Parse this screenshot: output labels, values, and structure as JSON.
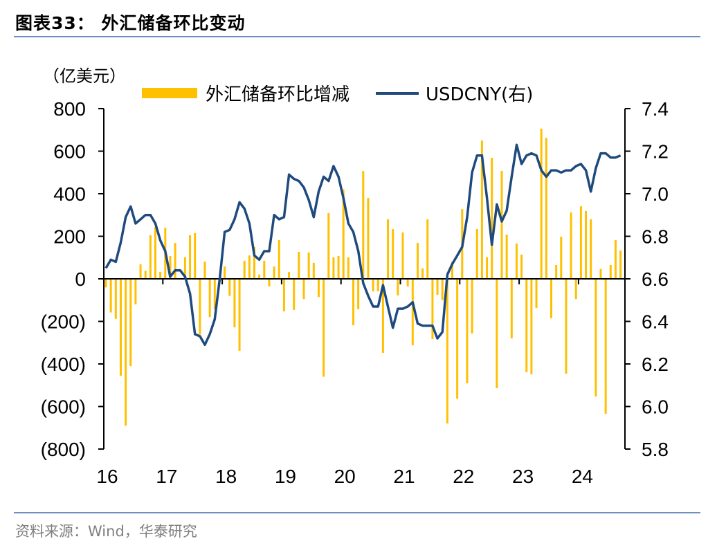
{
  "header": {
    "title": "图表33：  外汇储备环比变动"
  },
  "footer": {
    "source": "资料来源：Wind，华泰研究"
  },
  "chart_data": {
    "type": "bar+line",
    "title": "外汇储备环比变动",
    "ylabel": "（亿美元）",
    "y2label": "USDCNY(右)",
    "ylim": [
      -800,
      800
    ],
    "y2lim": [
      5.8,
      7.4
    ],
    "yticks": [
      "800",
      "600",
      "400",
      "200",
      "0",
      "(200)",
      "(400)",
      "(600)",
      "(800)"
    ],
    "y2ticks": [
      "7.4",
      "7.2",
      "7.0",
      "6.8",
      "6.6",
      "6.4",
      "6.2",
      "6.0",
      "5.8"
    ],
    "xticks": [
      "16",
      "17",
      "18",
      "19",
      "20",
      "21",
      "22",
      "23",
      "24"
    ],
    "x_start": "2016-01",
    "frequency": "monthly",
    "legend": {
      "placement": "top",
      "bar_label": "外汇储备环比增减",
      "line_label": "USDCNY(右)"
    },
    "colors": {
      "bar": "#FFC000",
      "line": "#1F4A7E"
    },
    "series": [
      {
        "name": "外汇储备环比增减",
        "axis": "left",
        "kind": "bar",
        "values": [
          -40,
          -158,
          -188,
          -455,
          -690,
          -410,
          -120,
          68,
          38,
          205,
          244,
          33,
          240,
          107,
          169,
          3,
          101,
          205,
          215,
          -262,
          81,
          -180,
          -143,
          -10,
          58,
          -80,
          -228,
          -338,
          85,
          110,
          150,
          20,
          85,
          -36,
          58,
          182,
          -153,
          32,
          -146,
          127,
          -95,
          124,
          75,
          -85,
          -460,
          309,
          101,
          107,
          420,
          101,
          -218,
          -143,
          507,
          380,
          -59,
          -59,
          -348,
          280,
          234,
          -78,
          218,
          -36,
          -312,
          169,
          49,
          280,
          -283,
          -75,
          -100,
          -680,
          81,
          -563,
          328,
          -491,
          -257,
          234,
          650,
          101,
          569,
          -514,
          507,
          208,
          -280,
          166,
          114,
          -439,
          -449,
          -137,
          706,
          663,
          -185,
          65,
          198,
          -446,
          312,
          -95,
          341,
          319,
          280,
          -553,
          46,
          -634,
          65,
          182,
          133
        ]
      },
      {
        "name": "USDCNY(右)",
        "axis": "right",
        "kind": "line",
        "values": [
          6.65,
          6.69,
          6.68,
          6.77,
          6.89,
          6.94,
          6.86,
          6.88,
          6.9,
          6.9,
          6.86,
          6.78,
          6.73,
          6.61,
          6.64,
          6.64,
          6.61,
          6.53,
          6.34,
          6.33,
          6.29,
          6.34,
          6.41,
          6.6,
          6.82,
          6.83,
          6.88,
          6.96,
          6.93,
          6.86,
          6.71,
          6.69,
          6.73,
          6.73,
          6.9,
          6.88,
          6.89,
          7.09,
          7.07,
          7.06,
          7.03,
          6.97,
          6.89,
          7.01,
          7.08,
          7.06,
          7.13,
          7.08,
          6.98,
          6.86,
          6.82,
          6.73,
          6.58,
          6.52,
          6.47,
          6.47,
          6.57,
          6.47,
          6.37,
          6.46,
          6.46,
          6.47,
          6.49,
          6.39,
          6.38,
          6.38,
          6.38,
          6.32,
          6.35,
          6.62,
          6.67,
          6.71,
          6.75,
          6.89,
          7.1,
          7.18,
          7.18,
          6.98,
          6.76,
          6.95,
          6.87,
          6.92,
          7.08,
          7.23,
          7.14,
          7.18,
          7.19,
          7.18,
          7.11,
          7.08,
          7.11,
          7.11,
          7.1,
          7.11,
          7.11,
          7.13,
          7.14,
          7.11,
          7.01,
          7.12,
          7.19,
          7.19,
          7.17,
          7.17,
          7.18
        ]
      }
    ]
  }
}
